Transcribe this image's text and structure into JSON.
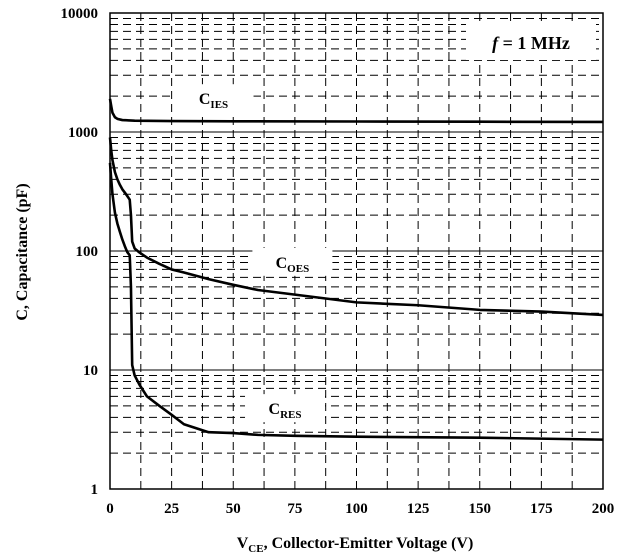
{
  "chart_data": {
    "type": "line",
    "xlabel_main": "V",
    "xlabel_sub": "CE",
    "xlabel_rest": ", Collector-Emitter Voltage (V)",
    "ylabel": "C, Capacitance (pF)",
    "annotation": {
      "f": "f",
      "text": " = 1 MHz"
    },
    "xlim": [
      0,
      200
    ],
    "ylim": [
      1,
      10000
    ],
    "yscale": "log",
    "grid": true,
    "x_ticks": [
      0,
      25,
      50,
      75,
      100,
      125,
      150,
      175,
      200
    ],
    "x_tick_labels": [
      "0",
      "25",
      "50",
      "75",
      "100",
      "125",
      "150",
      "175",
      "200"
    ],
    "y_ticks": [
      1,
      10,
      100,
      1000,
      10000
    ],
    "y_tick_labels": [
      "1",
      "10",
      "100",
      "1000",
      "10000"
    ],
    "series": [
      {
        "name": "C",
        "name_sub": "IES",
        "x": [
          0,
          0.5,
          1,
          2,
          3,
          5,
          10,
          25,
          50,
          100,
          150,
          200
        ],
        "y": [
          1900,
          1650,
          1450,
          1330,
          1290,
          1260,
          1245,
          1235,
          1230,
          1225,
          1220,
          1215
        ]
      },
      {
        "name": "C",
        "name_sub": "OES",
        "x": [
          0,
          0.5,
          1,
          2,
          3,
          4,
          5,
          6,
          7,
          8,
          8.5,
          9,
          10,
          12,
          15,
          20,
          25,
          30,
          40,
          50,
          60,
          75,
          100,
          125,
          150,
          175,
          200
        ],
        "y": [
          900,
          700,
          580,
          460,
          400,
          360,
          330,
          310,
          290,
          270,
          200,
          120,
          105,
          97,
          88,
          78,
          70,
          66,
          58,
          52,
          47,
          43,
          37,
          35,
          32,
          31,
          29
        ]
      },
      {
        "name": "C",
        "name_sub": "RES",
        "x": [
          0,
          0.5,
          1,
          2,
          3,
          4,
          5,
          6,
          7,
          8,
          8.5,
          9,
          10,
          12,
          15,
          20,
          25,
          30,
          40,
          50,
          60,
          75,
          100,
          150,
          200
        ],
        "y": [
          550,
          400,
          300,
          210,
          170,
          145,
          125,
          110,
          98,
          92,
          50,
          11,
          9,
          7.5,
          6,
          5,
          4.2,
          3.5,
          3.0,
          2.95,
          2.85,
          2.8,
          2.75,
          2.7,
          2.6
        ]
      }
    ]
  }
}
